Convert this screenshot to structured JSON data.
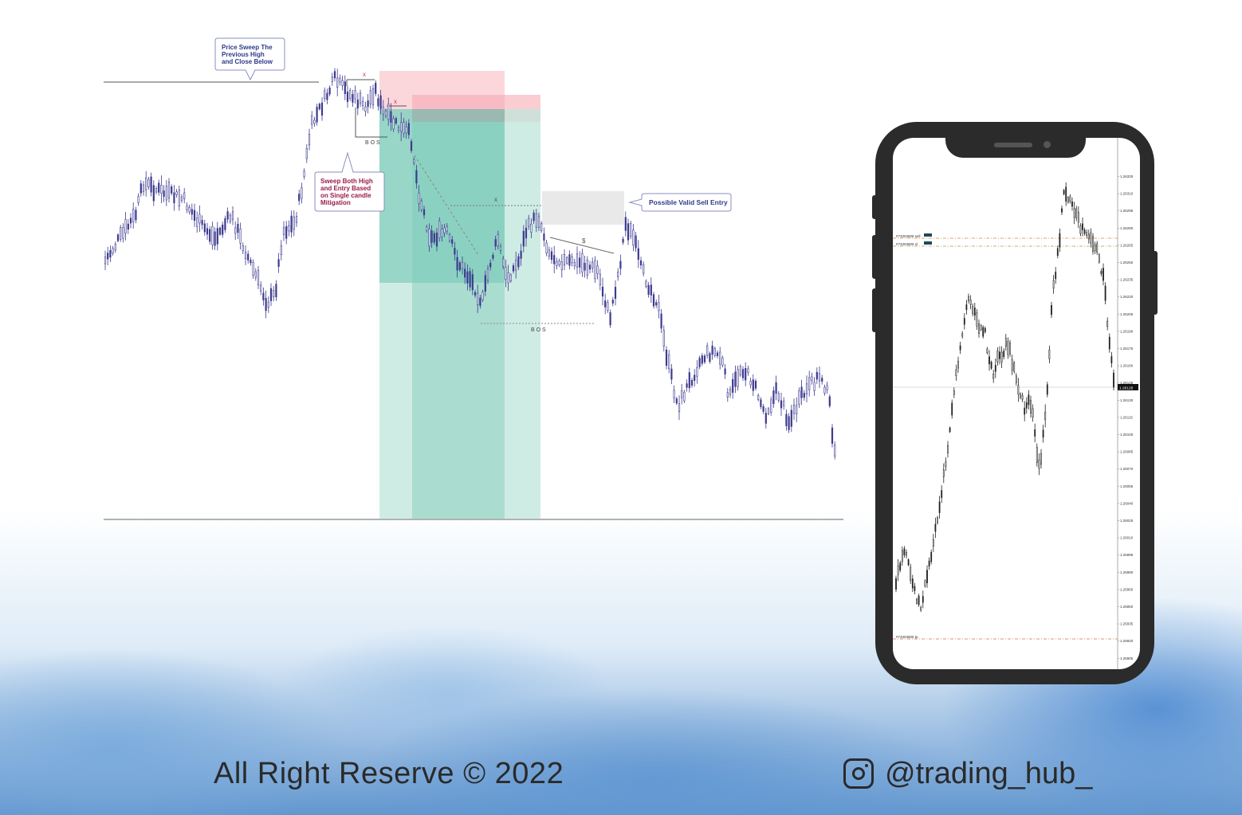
{
  "main_chart": {
    "annotation_sweep_high": [
      "Price Sweep The",
      "Previous High",
      "and Close Below"
    ],
    "annotation_sweep_both": [
      "Sweep Both High",
      "and Entry Based",
      "on Single candle",
      "Mitigation"
    ],
    "annotation_sell_entry": "Possible Valid Sell Entry",
    "bos_label_1": "B O S",
    "bos_label_2": "B O S",
    "x_mark_1": "x",
    "x_mark_2": "x",
    "x_mark_3": "x",
    "s_mark": "$",
    "colors": {
      "candles": "#3d3a8f",
      "stop_zone": "#f6a4ae",
      "target_zone": "#8fd1c0",
      "annotation_blue": "#2e3a8c",
      "annotation_red": "#9b1b4a"
    }
  },
  "phone_chart": {
    "price_labels": [
      "1.26325",
      "1.26310",
      "1.26295",
      "1.26280",
      "1.26265",
      "1.26250",
      "1.26235",
      "1.26220",
      "1.26205",
      "1.26190",
      "1.26175",
      "1.26160",
      "1.26145",
      "1.26130",
      "1.26115",
      "1.26100",
      "1.26085",
      "1.26070",
      "1.26055",
      "1.26040",
      "1.26025",
      "1.26010",
      "1.25995",
      "1.25980",
      "1.25965",
      "1.25950",
      "1.25935",
      "1.25920",
      "1.25905",
      "1.25890"
    ],
    "current_price": "1.26126",
    "order_labels": [
      "#73303808 sell",
      "#73303806 sl",
      "#73303806 tp"
    ]
  },
  "footer": {
    "copyright": "All Right Reserve  © 2022",
    "handle": "@trading_hub_",
    "icon": "instagram-icon"
  }
}
